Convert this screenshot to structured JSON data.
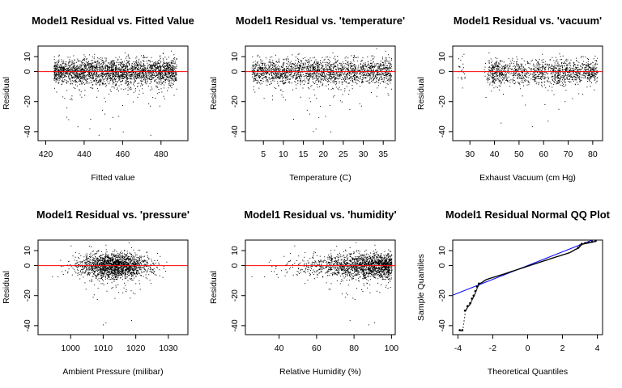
{
  "chart_data": [
    {
      "type": "scatter",
      "title": "Model1 Residual vs. Fitted Value",
      "xlabel": "Fitted value",
      "ylabel": "Residual",
      "xlim": [
        416,
        494
      ],
      "ylim": [
        -46,
        17
      ],
      "xticks": [
        420,
        440,
        460,
        480
      ],
      "yticks": [
        -40,
        -20,
        0,
        10
      ],
      "reference_line": {
        "type": "horizontal",
        "y": 0,
        "color": "#ff0000"
      },
      "points_color": "#000000",
      "x_range_points": [
        424,
        488
      ]
    },
    {
      "type": "scatter",
      "title": "Model1 Residual vs. 'temperature'",
      "xlabel": "Temperature (C)",
      "ylabel": "Residual",
      "xlim": [
        0.5,
        38
      ],
      "ylim": [
        -46,
        17
      ],
      "xticks": [
        5,
        10,
        15,
        20,
        25,
        30,
        35
      ],
      "yticks": [
        -40,
        -20,
        0,
        10
      ],
      "reference_line": {
        "type": "horizontal",
        "y": 0,
        "color": "#ff0000"
      },
      "points_color": "#000000",
      "x_range_points": [
        2,
        37
      ]
    },
    {
      "type": "scatter",
      "title": "Model1 Residual vs. 'vacuum'",
      "xlabel": "Exhaust Vacuum (cm Hg)",
      "ylabel": "Residual",
      "xlim": [
        23,
        84
      ],
      "ylim": [
        -46,
        17
      ],
      "xticks": [
        30,
        40,
        50,
        60,
        70,
        80
      ],
      "yticks": [
        -40,
        -20,
        0,
        10
      ],
      "reference_line": {
        "type": "horizontal",
        "y": 0,
        "color": "#ff0000"
      },
      "points_color": "#000000",
      "x_range_points": [
        25,
        82
      ]
    },
    {
      "type": "scatter",
      "title": "Model1 Residual vs. 'pressure'",
      "xlabel": "Ambient Pressure (milibar)",
      "ylabel": "Residual",
      "xlim": [
        990,
        1036
      ],
      "ylim": [
        -46,
        17
      ],
      "xticks": [
        1000,
        1010,
        1020,
        1030
      ],
      "yticks": [
        -40,
        -20,
        0,
        10
      ],
      "reference_line": {
        "type": "horizontal",
        "y": 0,
        "color": "#ff0000"
      },
      "points_color": "#000000",
      "x_range_points": [
        993,
        1033
      ]
    },
    {
      "type": "scatter",
      "title": "Model1 Residual vs. 'humidity'",
      "xlabel": "Relative Humidity (%)",
      "ylabel": "Residual",
      "xlim": [
        22,
        102
      ],
      "ylim": [
        -46,
        17
      ],
      "xticks": [
        40,
        60,
        80,
        100
      ],
      "yticks": [
        -40,
        -20,
        0,
        10
      ],
      "reference_line": {
        "type": "horizontal",
        "y": 0,
        "color": "#ff0000"
      },
      "points_color": "#000000",
      "x_range_points": [
        25,
        100
      ]
    },
    {
      "type": "scatter",
      "title": "Model1 Residual Normal QQ Plot",
      "xlabel": "Theoretical Quantiles",
      "ylabel": "Sample Quantiles",
      "xlim": [
        -4.3,
        4.3
      ],
      "ylim": [
        -46,
        17
      ],
      "xticks": [
        -4,
        -2,
        0,
        2,
        4
      ],
      "yticks": [
        -40,
        -20,
        0,
        10
      ],
      "reference_line": {
        "type": "qq-line",
        "points": [
          [
            -4.3,
            -19.7
          ],
          [
            4.3,
            19.7
          ]
        ],
        "color": "#0000ff"
      },
      "points_color": "#000000",
      "quantiles": {
        "theoretical": [
          -3.9,
          -3.75,
          -3.6,
          -3.45,
          -3.3,
          -3.2,
          -3.1,
          -3.0,
          -2.9,
          -2.8,
          -2.6,
          -2.4,
          -2.0,
          -1.5,
          -1.0,
          -0.5,
          0,
          0.5,
          1.0,
          1.5,
          2.0,
          2.4,
          2.7,
          2.9,
          3.0,
          3.1,
          3.3,
          3.5,
          3.7,
          3.9
        ],
        "sample": [
          -43,
          -43,
          -30,
          -27,
          -25,
          -22,
          -20,
          -17,
          -14,
          -12,
          -10.5,
          -9,
          -7.5,
          -5.7,
          -3.8,
          -1.9,
          0,
          1.9,
          3.8,
          5.7,
          7.5,
          9,
          11,
          12,
          13.5,
          14.5,
          15,
          15.5,
          16,
          16.5
        ]
      }
    }
  ]
}
